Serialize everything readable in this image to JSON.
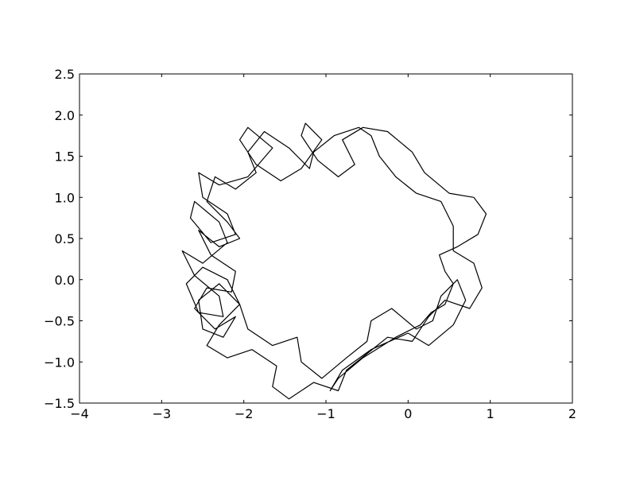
{
  "chart_data": {
    "type": "line",
    "title": "",
    "xlabel": "",
    "ylabel": "",
    "xlim": [
      -4,
      2
    ],
    "ylim": [
      -1.5,
      2.5
    ],
    "grid": false,
    "legend": "none",
    "x_ticks": [
      -4,
      -3,
      -2,
      -1,
      0,
      1,
      2
    ],
    "x_tick_labels": [
      "−4",
      "−3",
      "−2",
      "−1",
      "0",
      "1",
      "2"
    ],
    "y_ticks": [
      -1.5,
      -1.0,
      -0.5,
      0.0,
      0.5,
      1.0,
      1.5,
      2.0,
      2.5
    ],
    "y_tick_labels": [
      "−1.5",
      "−1.0",
      "−0.5",
      "0.0",
      "0.5",
      "1.0",
      "1.5",
      "2.0",
      "2.5"
    ],
    "line_color": "#000000",
    "series": [
      {
        "x": [
          0.0,
          -0.45,
          -0.8,
          -0.95,
          -0.85,
          -0.55,
          -0.15,
          0.15,
          0.28,
          0.45,
          0.55,
          0.45,
          0.38,
          0.6,
          0.85,
          0.95,
          0.8,
          0.5,
          0.2,
          0.05,
          -0.25,
          -0.55,
          -0.8,
          -0.65,
          -0.85,
          -1.1,
          -1.3,
          -1.25,
          -1.05,
          -1.3,
          -1.55,
          -1.85,
          -2.05,
          -1.95,
          -1.65,
          -1.95,
          -2.3,
          -2.55,
          -2.5,
          -2.2,
          -2.1,
          -2.4,
          -2.65,
          -2.6,
          -2.3,
          -2.2,
          -2.5,
          -2.75,
          -2.6,
          -2.3,
          -2.25,
          -2.55,
          -2.7,
          -2.5,
          -2.2,
          -2.05,
          -2.3,
          -2.45,
          -2.2,
          -1.9,
          -1.6,
          -1.65,
          -1.45,
          -1.15,
          -0.85,
          -0.75,
          -0.5,
          -0.25,
          0.05,
          0.25,
          0.45,
          0.75,
          0.9,
          0.8,
          0.55,
          0.55,
          0.4,
          0.1,
          -0.15,
          -0.35,
          -0.45,
          -0.6,
          -0.9,
          -1.15,
          -1.2,
          -1.45,
          -1.75,
          -1.95,
          -1.85,
          -2.1,
          -2.35,
          -2.45,
          -2.2,
          -2.05,
          -2.3,
          -2.55,
          -2.4,
          -2.1,
          -2.15,
          -2.45,
          -2.6,
          -2.35,
          -2.1,
          -2.25,
          -2.5,
          -2.55,
          -2.3,
          -2.05,
          -1.95,
          -1.65,
          -1.35,
          -1.3,
          -1.05,
          -0.75,
          -0.5,
          -0.45,
          -0.2,
          0.1,
          0.3,
          0.4,
          0.6,
          0.7,
          0.55,
          0.25,
          0.0
        ],
        "y": [
          -0.65,
          -0.85,
          -1.1,
          -1.35,
          -1.2,
          -0.95,
          -0.7,
          -0.55,
          -0.4,
          -0.3,
          -0.05,
          0.1,
          0.3,
          0.4,
          0.55,
          0.8,
          1.0,
          1.05,
          1.3,
          1.55,
          1.8,
          1.85,
          1.7,
          1.4,
          1.25,
          1.45,
          1.75,
          1.9,
          1.7,
          1.35,
          1.2,
          1.4,
          1.7,
          1.85,
          1.6,
          1.25,
          1.15,
          1.3,
          1.0,
          0.8,
          0.55,
          0.45,
          0.75,
          0.95,
          0.7,
          0.45,
          0.2,
          0.35,
          0.05,
          -0.2,
          -0.45,
          -0.4,
          -0.05,
          0.15,
          0.0,
          -0.3,
          -0.55,
          -0.8,
          -0.95,
          -0.85,
          -1.05,
          -1.3,
          -1.45,
          -1.25,
          -1.35,
          -1.1,
          -0.9,
          -0.7,
          -0.75,
          -0.45,
          -0.25,
          -0.35,
          -0.1,
          0.2,
          0.35,
          0.65,
          0.95,
          1.05,
          1.25,
          1.5,
          1.75,
          1.85,
          1.75,
          1.55,
          1.35,
          1.6,
          1.8,
          1.55,
          1.3,
          1.1,
          1.25,
          0.95,
          0.7,
          0.5,
          0.4,
          0.6,
          0.3,
          0.1,
          -0.15,
          -0.1,
          -0.35,
          -0.6,
          -0.45,
          -0.7,
          -0.6,
          -0.25,
          -0.05,
          -0.3,
          -0.6,
          -0.8,
          -0.7,
          -1.0,
          -1.2,
          -0.95,
          -0.75,
          -0.5,
          -0.35,
          -0.6,
          -0.5,
          -0.2,
          0.0,
          -0.25,
          -0.55,
          -0.8,
          -0.65
        ]
      }
    ]
  }
}
